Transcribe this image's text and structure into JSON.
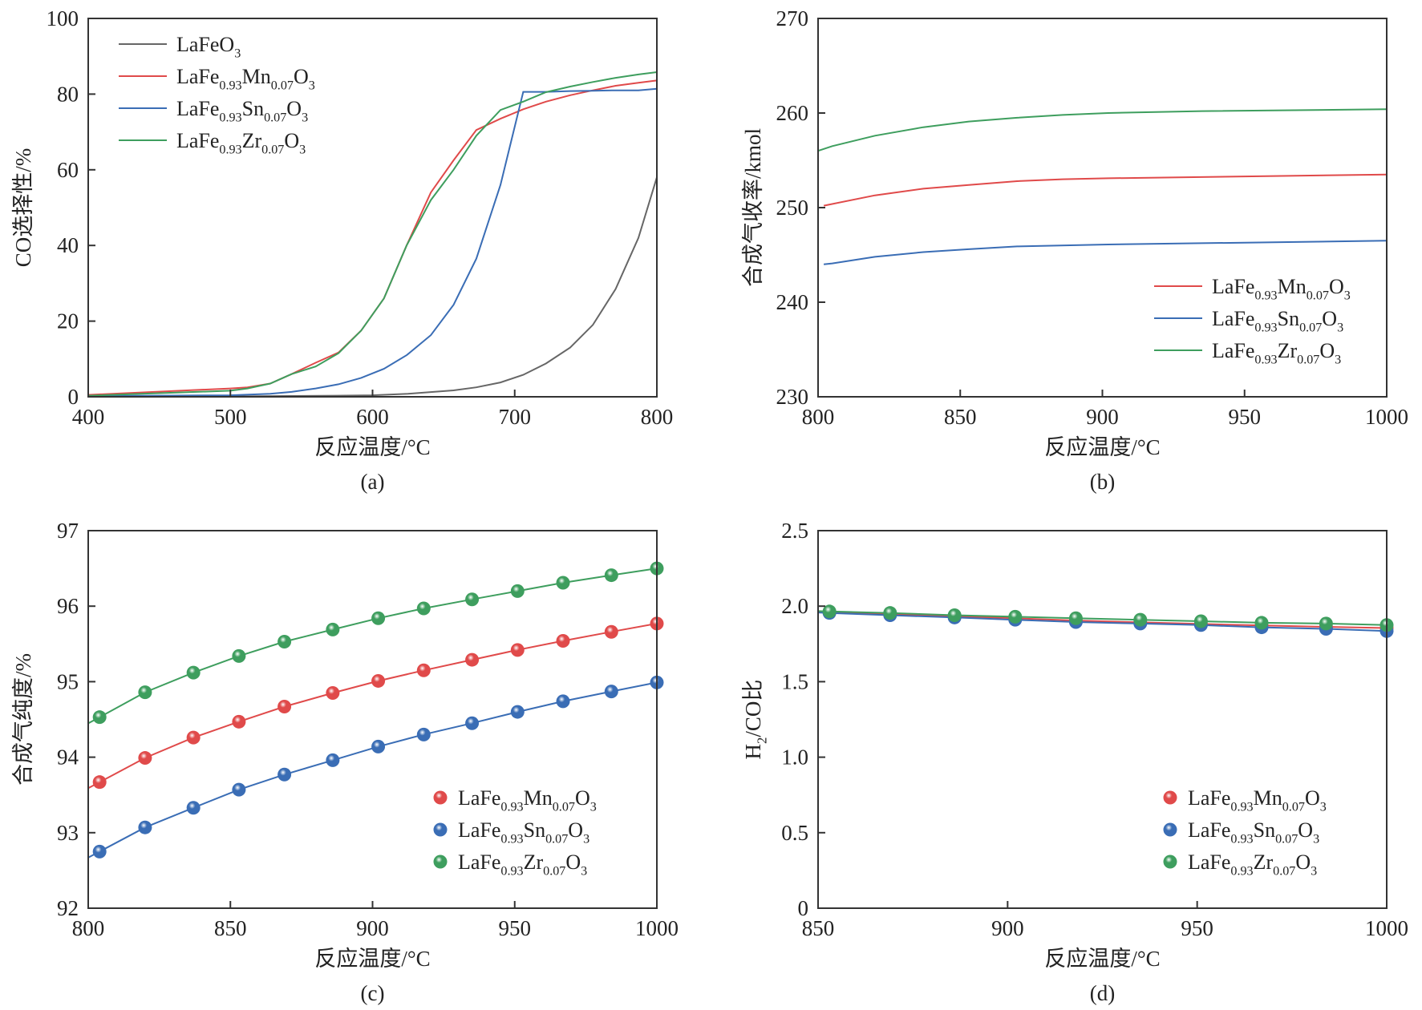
{
  "chart_data": [
    {
      "id": "a",
      "type": "line",
      "caption": "(a)",
      "xlabel": "反应温度/°C",
      "ylabel": "CO选择性/%",
      "xlim": [
        400,
        800
      ],
      "ylim": [
        0,
        100
      ],
      "xticks": [
        400,
        500,
        600,
        700,
        800
      ],
      "yticks": [
        0,
        20,
        40,
        60,
        80,
        100
      ],
      "legend_position": "top-left",
      "markers": false,
      "series": [
        {
          "name": "LaFeO3",
          "color": "#666666",
          "x": [
            400,
            500,
            575,
            600,
            625,
            640,
            657,
            673,
            690,
            706,
            722,
            739,
            755,
            771,
            787,
            800
          ],
          "y": [
            0,
            0.1,
            0.3,
            0.4,
            0.8,
            1.2,
            1.7,
            2.5,
            3.8,
            5.8,
            8.8,
            13,
            19,
            28.5,
            42,
            58
          ]
        },
        {
          "name": "LaFe0.93Mn0.07O3",
          "color": "#e04a4a",
          "x": [
            400,
            500,
            512,
            528,
            543,
            560,
            576,
            592,
            608,
            624,
            641,
            657,
            673,
            690,
            706,
            722,
            739,
            755,
            771,
            787,
            800
          ],
          "y": [
            0.5,
            2.2,
            2.5,
            3.5,
            6,
            9,
            11.7,
            17.5,
            26,
            40,
            54,
            62.5,
            70.5,
            73.5,
            76,
            78,
            79.7,
            81,
            82.2,
            83,
            83.6
          ]
        },
        {
          "name": "LaFe0.93Sn0.07O3",
          "color": "#3a6db5",
          "x": [
            400,
            500,
            528,
            543,
            560,
            576,
            592,
            608,
            624,
            641,
            657,
            673,
            690,
            706,
            722,
            739,
            755,
            771,
            787,
            800
          ],
          "y": [
            0.2,
            0.4,
            0.8,
            1.3,
            2.2,
            3.3,
            5,
            7.4,
            11,
            16.3,
            24.3,
            36.5,
            56,
            80.6,
            80.6,
            80.8,
            80.9,
            81,
            81,
            81.4
          ]
        },
        {
          "name": "LaFe0.93Zr0.07O3",
          "color": "#3e9e5e",
          "x": [
            400,
            500,
            512,
            528,
            543,
            560,
            576,
            592,
            608,
            624,
            641,
            657,
            673,
            690,
            706,
            722,
            739,
            755,
            771,
            787,
            800
          ],
          "y": [
            0.3,
            1.6,
            2.2,
            3.5,
            6,
            8,
            11.5,
            17.5,
            26,
            40,
            52,
            60,
            69,
            75.8,
            78,
            80.5,
            82,
            83.2,
            84.3,
            85.2,
            85.8
          ]
        }
      ]
    },
    {
      "id": "b",
      "type": "line",
      "caption": "(b)",
      "xlabel": "反应温度/°C",
      "ylabel": "合成气收率/kmol",
      "xlim": [
        800,
        1000
      ],
      "ylim": [
        230,
        270
      ],
      "xticks": [
        800,
        850,
        900,
        950,
        1000
      ],
      "yticks": [
        230,
        240,
        250,
        260,
        270
      ],
      "legend_position": "bottom-right",
      "markers": false,
      "series": [
        {
          "name": "LaFe0.93Mn0.07O3",
          "color": "#e04a4a",
          "x": [
            802,
            820,
            837,
            853,
            870,
            886,
            902,
            950,
            1000
          ],
          "y": [
            250.2,
            251.3,
            252,
            252.4,
            252.8,
            253,
            253.1,
            253.3,
            253.5
          ]
        },
        {
          "name": "LaFe0.93Sn0.07O3",
          "color": "#3a6db5",
          "x": [
            802,
            805,
            820,
            837,
            853,
            870,
            902,
            950,
            1000
          ],
          "y": [
            244,
            244.1,
            244.8,
            245.3,
            245.6,
            245.9,
            246.1,
            246.3,
            246.5
          ]
        },
        {
          "name": "LaFe0.93Zr0.07O3",
          "color": "#3e9e5e",
          "x": [
            800,
            805,
            820,
            837,
            853,
            870,
            886,
            902,
            935,
            1000
          ],
          "y": [
            256,
            256.5,
            257.6,
            258.5,
            259.1,
            259.5,
            259.8,
            260,
            260.2,
            260.4
          ]
        }
      ]
    },
    {
      "id": "c",
      "type": "line",
      "caption": "(c)",
      "xlabel": "反应温度/°C",
      "ylabel": "合成气纯度/%",
      "xlim": [
        800,
        1000
      ],
      "ylim": [
        92,
        97
      ],
      "xticks": [
        800,
        850,
        900,
        950,
        1000
      ],
      "yticks": [
        92,
        93,
        94,
        95,
        96,
        97
      ],
      "legend_position": "bottom-right",
      "markers": true,
      "series": [
        {
          "name": "LaFe0.93Mn0.07O3",
          "color": "#e04a4a",
          "x": [
            804,
            820,
            837,
            853,
            869,
            886,
            902,
            918,
            935,
            951,
            967,
            984,
            1000
          ],
          "y": [
            93.67,
            93.99,
            94.26,
            94.47,
            94.67,
            94.85,
            95.01,
            95.15,
            95.29,
            95.42,
            95.54,
            95.66,
            95.77
          ]
        },
        {
          "name": "LaFe0.93Sn0.07O3",
          "color": "#3a6db5",
          "x": [
            804,
            820,
            837,
            853,
            869,
            886,
            902,
            918,
            935,
            951,
            967,
            984,
            1000
          ],
          "y": [
            92.75,
            93.07,
            93.33,
            93.57,
            93.77,
            93.96,
            94.14,
            94.3,
            94.45,
            94.6,
            94.74,
            94.87,
            94.99
          ]
        },
        {
          "name": "LaFe0.93Zr0.07O3",
          "color": "#3e9e5e",
          "x": [
            804,
            820,
            837,
            853,
            869,
            886,
            902,
            918,
            935,
            951,
            967,
            984,
            1000
          ],
          "y": [
            94.53,
            94.86,
            95.12,
            95.34,
            95.53,
            95.69,
            95.84,
            95.97,
            96.09,
            96.2,
            96.31,
            96.41,
            96.5
          ]
        }
      ]
    },
    {
      "id": "d",
      "type": "line",
      "caption": "(d)",
      "xlabel": "反应温度/°C",
      "ylabel": "H2/CO比",
      "xlim": [
        850,
        1000
      ],
      "ylim": [
        0,
        2.5
      ],
      "xticks": [
        850,
        900,
        950,
        1000
      ],
      "yticks": [
        0,
        0.5,
        1.0,
        1.5,
        2.0,
        2.5
      ],
      "ytick_labels": [
        "0",
        "0.5",
        "1.0",
        "1.5",
        "2.0",
        "2.5"
      ],
      "legend_position": "bottom-right",
      "markers": true,
      "series": [
        {
          "name": "LaFe0.93Mn0.07O3",
          "color": "#e04a4a",
          "x": [
            853,
            869,
            886,
            902,
            918,
            935,
            951,
            967,
            984,
            1000
          ],
          "y": [
            1.96,
            1.948,
            1.933,
            1.92,
            1.905,
            1.893,
            1.882,
            1.872,
            1.863,
            1.855
          ]
        },
        {
          "name": "LaFe0.93Sn0.07O3",
          "color": "#3a6db5",
          "x": [
            853,
            869,
            886,
            902,
            918,
            935,
            951,
            967,
            984,
            1000
          ],
          "y": [
            1.955,
            1.94,
            1.925,
            1.91,
            1.895,
            1.885,
            1.875,
            1.86,
            1.85,
            1.835
          ]
        },
        {
          "name": "LaFe0.93Zr0.07O3",
          "color": "#3e9e5e",
          "x": [
            853,
            869,
            886,
            902,
            918,
            935,
            951,
            967,
            984,
            1000
          ],
          "y": [
            1.965,
            1.955,
            1.94,
            1.93,
            1.92,
            1.91,
            1.9,
            1.89,
            1.885,
            1.875
          ]
        }
      ]
    }
  ]
}
